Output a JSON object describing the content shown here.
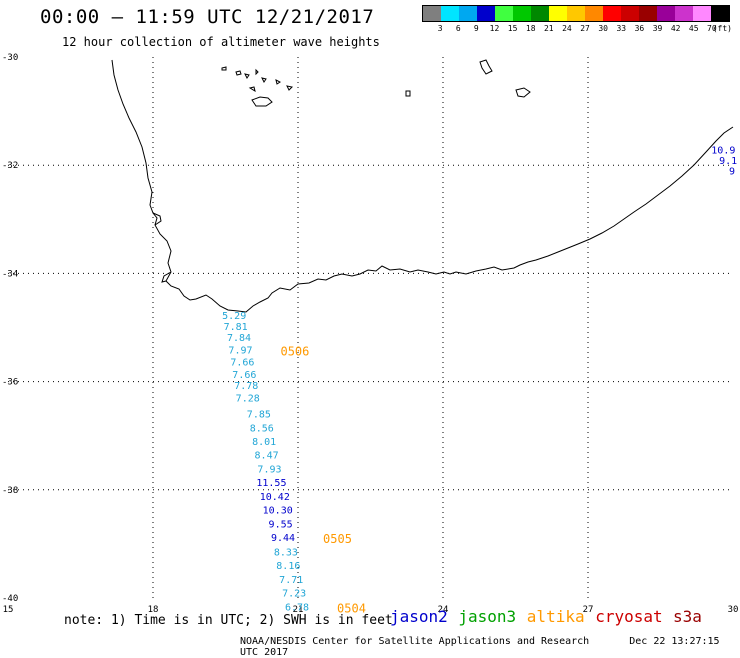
{
  "header": {
    "title": "00:00 – 11:59 UTC 12/21/2017",
    "subtitle": "12 hour collection of altimeter wave heights"
  },
  "colorbar": {
    "colors": [
      "#7f7f7f",
      "#00e5ff",
      "#00a8f0",
      "#0000cc",
      "#40ff40",
      "#00c800",
      "#008800",
      "#ffff00",
      "#ffc800",
      "#ff8800",
      "#ff0000",
      "#cc0000",
      "#990000",
      "#990099",
      "#cc33cc",
      "#ff88ff",
      "#000000"
    ],
    "tick_labels": [
      "3",
      "6",
      "9",
      "12",
      "15",
      "18",
      "21",
      "24",
      "27",
      "30",
      "33",
      "36",
      "39",
      "42",
      "45",
      "70"
    ],
    "unit": "(ft)"
  },
  "map": {
    "lat_labels": [
      "-30",
      "-32",
      "-34",
      "-36",
      "-38",
      "-40"
    ],
    "lon_labels": [
      "15",
      "18",
      "21",
      "24",
      "27",
      "30"
    ],
    "tracks": [
      {
        "satellite": "jason3",
        "color": "#22a6d6",
        "label": "0506",
        "label_color": "#ff9900",
        "points": [
          {
            "value": "5.29",
            "lon": 19.68,
            "lat": -34.84
          },
          {
            "value": "7.81",
            "lon": 19.71,
            "lat": -35.05
          },
          {
            "value": "7.84",
            "lon": 19.78,
            "lat": -35.25
          },
          {
            "value": "7.97",
            "lon": 19.81,
            "lat": -35.48
          },
          {
            "value": "7.66",
            "lon": 19.85,
            "lat": -35.7
          },
          {
            "value": "7.66",
            "lon": 19.89,
            "lat": -35.93
          },
          {
            "value": "7.78",
            "lon": 19.93,
            "lat": -36.14
          },
          {
            "value": "7.28",
            "lon": 19.96,
            "lat": -36.37
          }
        ]
      },
      {
        "satellite": "jason3",
        "color": "#22a6d6",
        "label": "",
        "label_color": "#ff9900",
        "points": [
          {
            "value": "7.85",
            "lon": 20.19,
            "lat": -36.66
          },
          {
            "value": "8.56",
            "lon": 20.25,
            "lat": -36.92
          },
          {
            "value": "8.01",
            "lon": 20.3,
            "lat": -37.17
          },
          {
            "value": "8.47",
            "lon": 20.35,
            "lat": -37.42
          },
          {
            "value": "7.93",
            "lon": 20.41,
            "lat": -37.68
          }
        ]
      },
      {
        "satellite": "jason2",
        "color": "#0000cc",
        "label": "0505",
        "label_color": "#ff9900",
        "points": [
          {
            "value": "11.55",
            "lon": 20.45,
            "lat": -37.93
          },
          {
            "value": "10.42",
            "lon": 20.52,
            "lat": -38.19
          },
          {
            "value": "10.30",
            "lon": 20.58,
            "lat": -38.44
          },
          {
            "value": "9.55",
            "lon": 20.64,
            "lat": -38.7
          },
          {
            "value": "9.44",
            "lon": 20.69,
            "lat": -38.95
          }
        ]
      },
      {
        "satellite": "jason3",
        "color": "#22a6d6",
        "label": "0504",
        "label_color": "#ff9900",
        "points": [
          {
            "value": "8.33",
            "lon": 20.75,
            "lat": -39.21
          },
          {
            "value": "8.16",
            "lon": 20.8,
            "lat": -39.46
          },
          {
            "value": "7.71",
            "lon": 20.86,
            "lat": -39.72
          },
          {
            "value": "7.23",
            "lon": 20.92,
            "lat": -39.97
          },
          {
            "value": "6.78",
            "lon": 20.98,
            "lat": -40.23
          }
        ]
      },
      {
        "satellite": "jason2",
        "color": "#0000cc",
        "label": "",
        "label_color": "#ff9900",
        "points": [
          {
            "value": "10.9",
            "lon": 29.8,
            "lat": -31.78
          },
          {
            "value": "9.1",
            "lon": 29.9,
            "lat": -31.98
          },
          {
            "value": "9",
            "lon": 29.98,
            "lat": -32.17
          }
        ]
      }
    ]
  },
  "footer": {
    "note": "note: 1) Time is in UTC; 2) SWH is in feet",
    "satellites": [
      {
        "name": "jason2",
        "color": "#0000cc"
      },
      {
        "name": "jason3",
        "color": "#00a000"
      },
      {
        "name": "altika",
        "color": "#ff9900"
      },
      {
        "name": "cryosat",
        "color": "#cc0000"
      },
      {
        "name": "s3a",
        "color": "#990000"
      }
    ],
    "credit": "NOAA/NESDIS Center for Satellite Applications and Research",
    "timestamp": "Dec 22 13:27:15 UTC 2017"
  }
}
